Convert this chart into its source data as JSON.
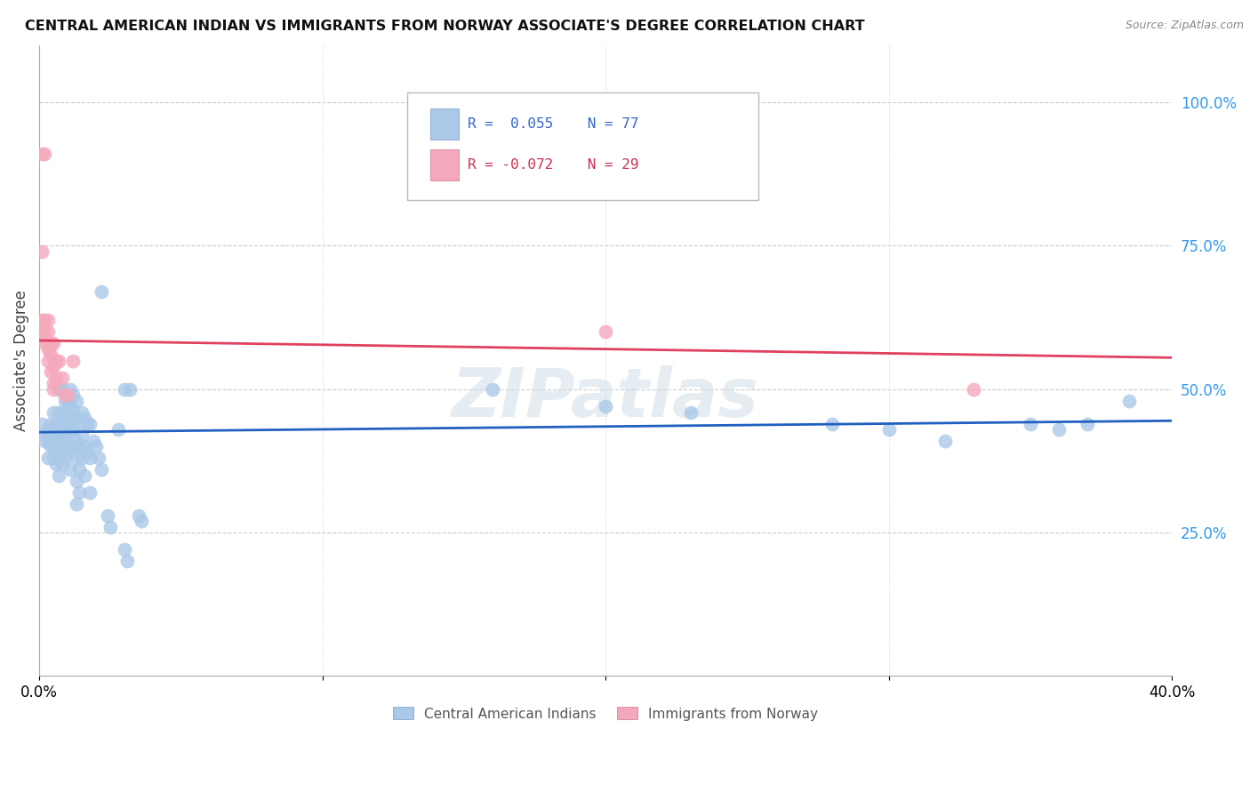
{
  "title": "CENTRAL AMERICAN INDIAN VS IMMIGRANTS FROM NORWAY ASSOCIATE'S DEGREE CORRELATION CHART",
  "source": "Source: ZipAtlas.com",
  "ylabel": "Associate's Degree",
  "right_ytick_labels": [
    "100.0%",
    "75.0%",
    "50.0%",
    "25.0%"
  ],
  "right_ytick_vals": [
    1.0,
    0.75,
    0.5,
    0.25
  ],
  "watermark": "ZIPatlas",
  "blue_color": "#aac8e8",
  "pink_color": "#f4a8bc",
  "line_blue": "#2060c0",
  "line_pink": "#e04060",
  "blue_scatter": [
    [
      0.001,
      0.44
    ],
    [
      0.002,
      0.42
    ],
    [
      0.002,
      0.41
    ],
    [
      0.003,
      0.43
    ],
    [
      0.003,
      0.38
    ],
    [
      0.003,
      0.41
    ],
    [
      0.004,
      0.44
    ],
    [
      0.004,
      0.42
    ],
    [
      0.004,
      0.4
    ],
    [
      0.005,
      0.46
    ],
    [
      0.005,
      0.43
    ],
    [
      0.005,
      0.4
    ],
    [
      0.005,
      0.38
    ],
    [
      0.006,
      0.44
    ],
    [
      0.006,
      0.42
    ],
    [
      0.006,
      0.4
    ],
    [
      0.006,
      0.37
    ],
    [
      0.007,
      0.5
    ],
    [
      0.007,
      0.46
    ],
    [
      0.007,
      0.44
    ],
    [
      0.007,
      0.42
    ],
    [
      0.007,
      0.38
    ],
    [
      0.007,
      0.35
    ],
    [
      0.008,
      0.5
    ],
    [
      0.008,
      0.46
    ],
    [
      0.008,
      0.43
    ],
    [
      0.008,
      0.4
    ],
    [
      0.008,
      0.37
    ],
    [
      0.009,
      0.48
    ],
    [
      0.009,
      0.44
    ],
    [
      0.009,
      0.41
    ],
    [
      0.009,
      0.38
    ],
    [
      0.01,
      0.48
    ],
    [
      0.01,
      0.45
    ],
    [
      0.01,
      0.42
    ],
    [
      0.01,
      0.39
    ],
    [
      0.011,
      0.5
    ],
    [
      0.011,
      0.47
    ],
    [
      0.011,
      0.43
    ],
    [
      0.011,
      0.4
    ],
    [
      0.011,
      0.36
    ],
    [
      0.012,
      0.49
    ],
    [
      0.012,
      0.46
    ],
    [
      0.012,
      0.43
    ],
    [
      0.012,
      0.4
    ],
    [
      0.013,
      0.48
    ],
    [
      0.013,
      0.45
    ],
    [
      0.013,
      0.41
    ],
    [
      0.013,
      0.38
    ],
    [
      0.013,
      0.34
    ],
    [
      0.013,
      0.3
    ],
    [
      0.014,
      0.44
    ],
    [
      0.014,
      0.4
    ],
    [
      0.014,
      0.36
    ],
    [
      0.014,
      0.32
    ],
    [
      0.015,
      0.46
    ],
    [
      0.015,
      0.42
    ],
    [
      0.015,
      0.38
    ],
    [
      0.016,
      0.45
    ],
    [
      0.016,
      0.4
    ],
    [
      0.016,
      0.35
    ],
    [
      0.017,
      0.44
    ],
    [
      0.017,
      0.39
    ],
    [
      0.018,
      0.44
    ],
    [
      0.018,
      0.38
    ],
    [
      0.018,
      0.32
    ],
    [
      0.019,
      0.41
    ],
    [
      0.02,
      0.4
    ],
    [
      0.021,
      0.38
    ],
    [
      0.022,
      0.36
    ],
    [
      0.022,
      0.67
    ],
    [
      0.024,
      0.28
    ],
    [
      0.025,
      0.26
    ],
    [
      0.028,
      0.43
    ],
    [
      0.03,
      0.22
    ],
    [
      0.031,
      0.2
    ],
    [
      0.03,
      0.5
    ],
    [
      0.032,
      0.5
    ],
    [
      0.035,
      0.28
    ],
    [
      0.036,
      0.27
    ],
    [
      0.16,
      0.5
    ],
    [
      0.2,
      0.47
    ],
    [
      0.23,
      0.46
    ],
    [
      0.28,
      0.44
    ],
    [
      0.3,
      0.43
    ],
    [
      0.32,
      0.41
    ],
    [
      0.35,
      0.44
    ],
    [
      0.36,
      0.43
    ],
    [
      0.37,
      0.44
    ],
    [
      0.385,
      0.48
    ]
  ],
  "pink_scatter": [
    [
      0.001,
      0.91
    ],
    [
      0.002,
      0.91
    ],
    [
      0.001,
      0.74
    ],
    [
      0.001,
      0.62
    ],
    [
      0.002,
      0.62
    ],
    [
      0.001,
      0.6
    ],
    [
      0.002,
      0.6
    ],
    [
      0.002,
      0.59
    ],
    [
      0.002,
      0.58
    ],
    [
      0.003,
      0.62
    ],
    [
      0.003,
      0.6
    ],
    [
      0.003,
      0.57
    ],
    [
      0.003,
      0.55
    ],
    [
      0.004,
      0.58
    ],
    [
      0.004,
      0.56
    ],
    [
      0.004,
      0.53
    ],
    [
      0.005,
      0.58
    ],
    [
      0.005,
      0.54
    ],
    [
      0.005,
      0.51
    ],
    [
      0.006,
      0.55
    ],
    [
      0.006,
      0.52
    ],
    [
      0.007,
      0.55
    ],
    [
      0.008,
      0.52
    ],
    [
      0.009,
      0.49
    ],
    [
      0.01,
      0.49
    ],
    [
      0.012,
      0.55
    ],
    [
      0.2,
      0.6
    ],
    [
      0.33,
      0.5
    ],
    [
      0.005,
      0.5
    ]
  ],
  "xlim": [
    0.0,
    0.4
  ],
  "ylim": [
    0.0,
    1.1
  ],
  "blue_line_x": [
    0.0,
    0.4
  ],
  "blue_line_y": [
    0.425,
    0.445
  ],
  "pink_line_x": [
    0.0,
    0.4
  ],
  "pink_line_y": [
    0.585,
    0.555
  ],
  "xtick_positions": [
    0.0,
    0.1,
    0.2,
    0.3,
    0.4
  ],
  "xtick_labels": [
    "0.0%",
    "",
    "",
    "",
    "40.0%"
  ]
}
